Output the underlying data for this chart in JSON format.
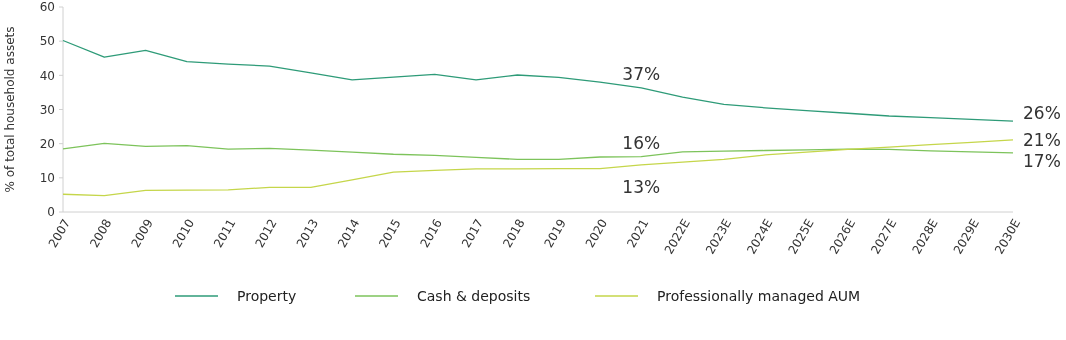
{
  "chart_data": {
    "type": "line",
    "ylabel": "% of total household assets",
    "categories": [
      "2007",
      "2008",
      "2009",
      "2010",
      "2011",
      "2012",
      "2013",
      "2014",
      "2015",
      "2016",
      "2017",
      "2018",
      "2019",
      "2020",
      "2021",
      "2022E",
      "2023E",
      "2024E",
      "2025E",
      "2026E",
      "2027E",
      "2028E",
      "2029E",
      "2030E"
    ],
    "series": [
      {
        "name": "Property",
        "color": "#2e9b78",
        "values": [
          50.2,
          45.3,
          47.3,
          44,
          43.3,
          42.7,
          40.7,
          38.7,
          39.5,
          40.3,
          38.7,
          40.1,
          39.4,
          38,
          36.3,
          33.6,
          31.5,
          30.5,
          29.7,
          28.9,
          28.1,
          27.6,
          27.1,
          26.6
        ]
      },
      {
        "name": "Cash & deposits",
        "color": "#7dc35b",
        "values": [
          18.5,
          20.1,
          19.2,
          19.4,
          18.4,
          18.6,
          18.1,
          17.5,
          16.9,
          16.6,
          16,
          15.4,
          15.4,
          16.1,
          16.2,
          17.6,
          17.8,
          18,
          18.2,
          18.4,
          18.3,
          17.9,
          17.6,
          17.3
        ]
      },
      {
        "name": "Professionally managed AUM",
        "color": "#c5d64a",
        "values": [
          5.2,
          4.8,
          6.3,
          6.4,
          6.5,
          7.2,
          7.2,
          9.4,
          11.7,
          12.2,
          12.6,
          12.6,
          12.7,
          12.7,
          13.8,
          14.6,
          15.4,
          16.7,
          17.5,
          18.3,
          19,
          19.7,
          20.4,
          21.1
        ]
      }
    ],
    "ylim": [
      0,
      60
    ],
    "yticks": [
      0,
      10,
      20,
      30,
      40,
      50,
      60
    ],
    "grid": false,
    "legend": "bottom",
    "marker": "none",
    "line_style": "solid",
    "annotations": [
      {
        "text": "37%",
        "x": "2021",
        "y": 36.3
      },
      {
        "text": "16%",
        "x": "2021",
        "y": 16.2
      },
      {
        "text": "13%",
        "x": "2021",
        "y": 13.8
      },
      {
        "text": "26%",
        "x": "2030E",
        "y": 26.6
      },
      {
        "text": "21%",
        "x": "2030E",
        "y": 21.1
      },
      {
        "text": "17%",
        "x": "2030E",
        "y": 17.3
      }
    ]
  }
}
